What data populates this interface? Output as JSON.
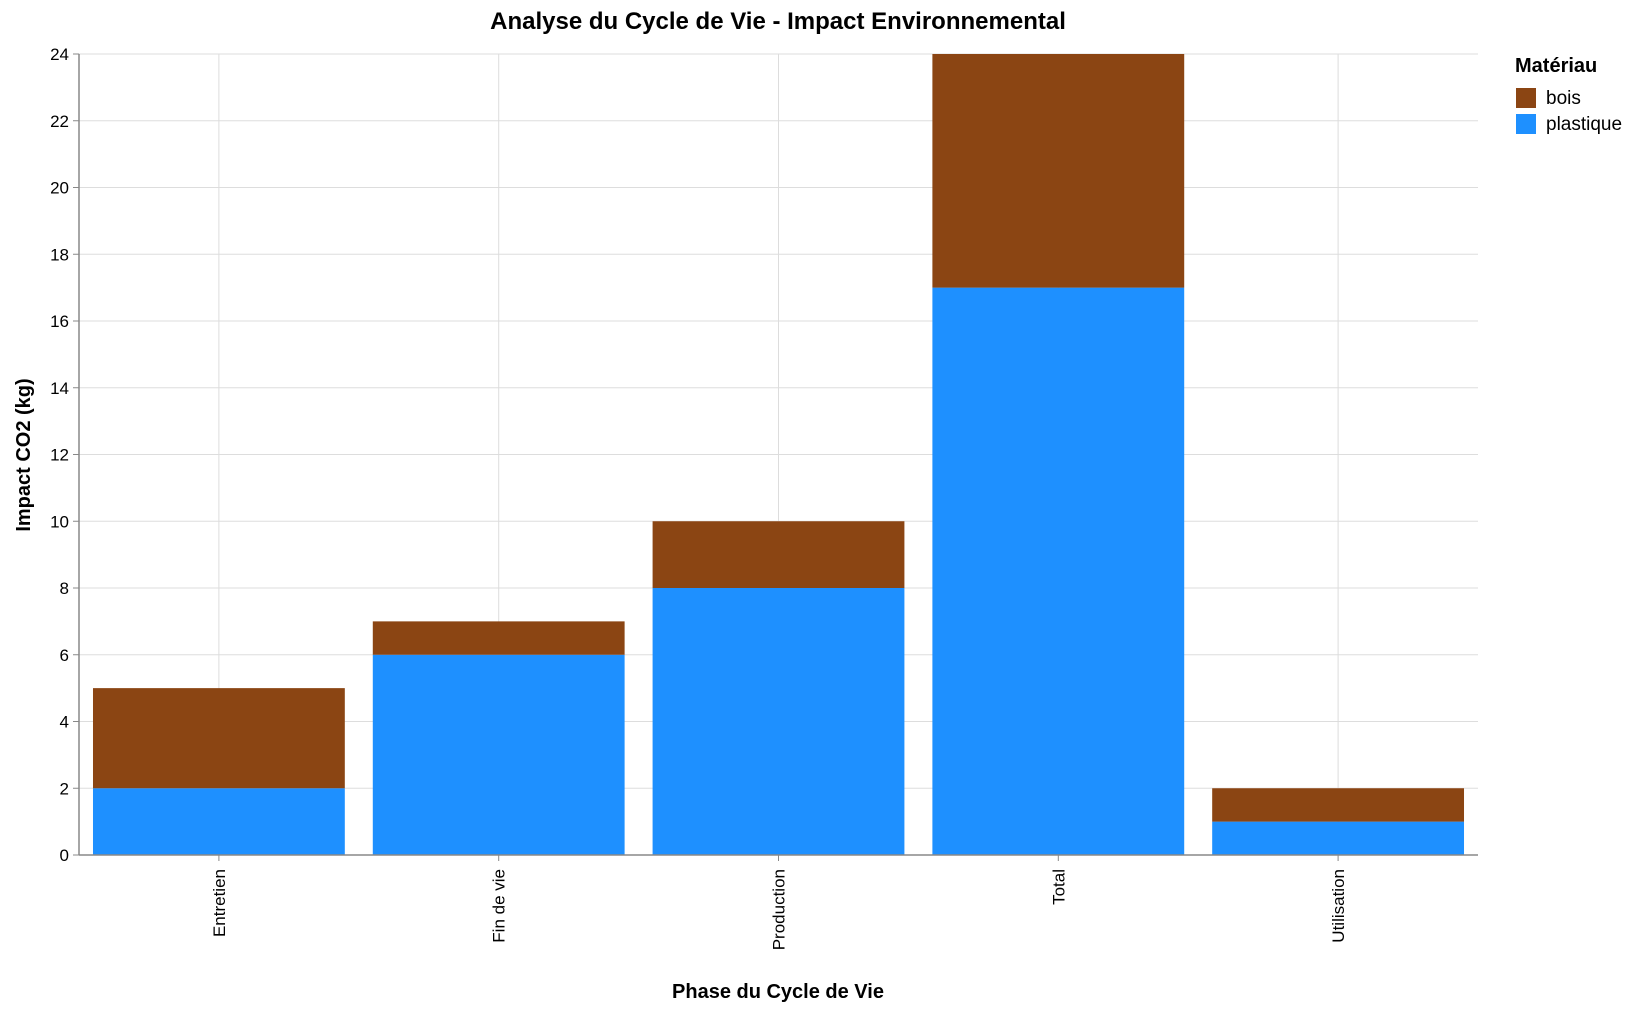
{
  "chart_data": {
    "type": "bar",
    "stacked": true,
    "title": "Analyse du Cycle de Vie - Impact Environnemental",
    "xlabel": "Phase du Cycle de Vie",
    "ylabel": "Impact CO2 (kg)",
    "categories": [
      "Entretien",
      "Fin de vie",
      "Production",
      "Total",
      "Utilisation"
    ],
    "series": [
      {
        "name": "plastique",
        "color": "#1e90ff",
        "values": [
          2,
          6,
          8,
          17,
          1
        ]
      },
      {
        "name": "bois",
        "color": "#8b4513",
        "values": [
          3,
          1,
          2,
          7,
          1
        ]
      }
    ],
    "ylim": [
      0,
      24
    ],
    "yticks": [
      0,
      2,
      4,
      6,
      8,
      10,
      12,
      14,
      16,
      18,
      20,
      22,
      24
    ],
    "grid": true,
    "legend": {
      "title": "Matériau",
      "placement": "top-right",
      "entries": [
        "bois",
        "plastique"
      ]
    }
  }
}
